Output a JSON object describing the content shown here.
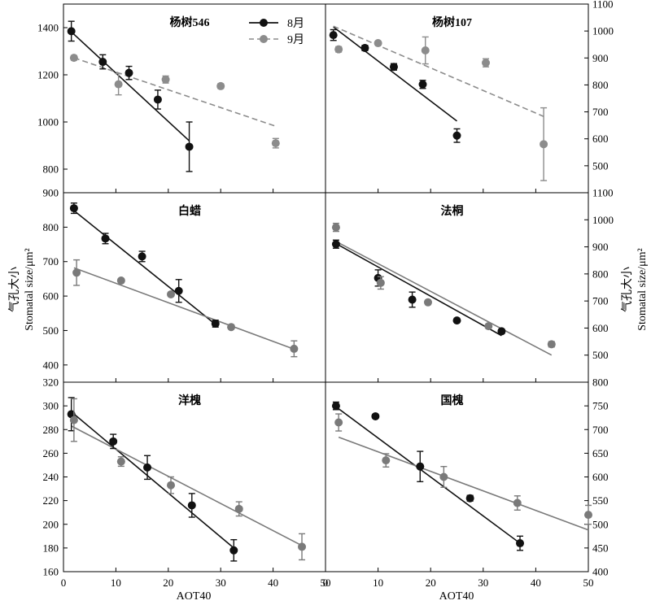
{
  "figure": {
    "xlabel": "AOT40",
    "ylabel_cn": "气孔大小",
    "ylabel_en": "Stomatal size/μm²",
    "legend": [
      {
        "label": "8月",
        "color": "#111111",
        "dashed": false
      },
      {
        "label": "9月",
        "color": "#8c8c8c",
        "dashed": true
      }
    ]
  },
  "chart_data": [
    {
      "type": "scatter",
      "title": "杨树546",
      "xlim": [
        0,
        50
      ],
      "ylim": [
        700,
        1500
      ],
      "yticks": [
        800,
        1000,
        1200,
        1400
      ],
      "xticks": [
        0,
        10,
        20,
        30,
        40
      ],
      "yaxis": "left",
      "series": [
        {
          "name": "8月",
          "color": "#111111",
          "points": [
            [
              1.5,
              1385,
              42
            ],
            [
              7.5,
              1255,
              30
            ],
            [
              12.5,
              1208,
              28
            ],
            [
              18,
              1095,
              40
            ],
            [
              24,
              895,
              105
            ]
          ],
          "fit": [
            [
              1.5,
              1382
            ],
            [
              24,
              920
            ]
          ],
          "dash": false
        },
        {
          "name": "9月",
          "color": "#8c8c8c",
          "points": [
            [
              2,
              1272,
              10
            ],
            [
              10.5,
              1160,
              45
            ],
            [
              19.5,
              1180,
              15
            ],
            [
              30,
              1152,
              10
            ],
            [
              40.5,
              910,
              20
            ]
          ],
          "fit": [
            [
              2,
              1272
            ],
            [
              40.5,
              982
            ]
          ],
          "dash": true
        }
      ]
    },
    {
      "type": "scatter",
      "title": "杨树107",
      "xlim": [
        0,
        50
      ],
      "ylim": [
        400,
        1100
      ],
      "yticks": [
        500,
        600,
        700,
        800,
        900,
        1000,
        1100
      ],
      "xticks": [
        0,
        10,
        20,
        30,
        40,
        50
      ],
      "yaxis": "right",
      "series": [
        {
          "name": "8月",
          "color": "#111111",
          "points": [
            [
              1.5,
              985,
              20
            ],
            [
              7.5,
              937,
              10
            ],
            [
              13,
              867,
              12
            ],
            [
              18.5,
              802,
              15
            ],
            [
              25,
              612,
              25
            ]
          ],
          "fit": [
            [
              1.5,
              1015
            ],
            [
              25,
              666
            ]
          ],
          "dash": false
        },
        {
          "name": "9月",
          "color": "#8c8c8c",
          "points": [
            [
              2.5,
              932,
              10
            ],
            [
              10,
              955,
              5
            ],
            [
              19,
              928,
              50
            ],
            [
              30.5,
              882,
              15
            ],
            [
              41.5,
              580,
              135
            ]
          ],
          "fit": [
            [
              1.5,
              1018
            ],
            [
              41.5,
              683
            ]
          ],
          "dash": true
        }
      ]
    },
    {
      "type": "scatter",
      "title": "白蜡",
      "xlim": [
        0,
        50
      ],
      "ylim": [
        350,
        900
      ],
      "yticks": [
        400,
        500,
        600,
        700,
        800,
        900
      ],
      "xticks": [
        0,
        10,
        20,
        30,
        40
      ],
      "yaxis": "left",
      "series": [
        {
          "name": "8月",
          "color": "#111111",
          "points": [
            [
              2,
              855,
              15
            ],
            [
              8,
              767,
              15
            ],
            [
              15,
              715,
              15
            ],
            [
              22,
              615,
              33
            ],
            [
              29,
              520,
              10
            ]
          ],
          "fit": [
            [
              2,
              848
            ],
            [
              29,
              518
            ]
          ],
          "dash": false
        },
        {
          "name": "9月",
          "color": "#7a7a7a",
          "points": [
            [
              2.5,
              668,
              37
            ],
            [
              11,
              645,
              5
            ],
            [
              20.5,
              605,
              5
            ],
            [
              32,
              510,
              5
            ],
            [
              44,
              447,
              23
            ]
          ],
          "fit": [
            [
              2,
              682
            ],
            [
              44,
              446
            ]
          ],
          "dash": false
        }
      ]
    },
    {
      "type": "scatter",
      "title": "法桐",
      "xlim": [
        0,
        50
      ],
      "ylim": [
        400,
        1100
      ],
      "yticks": [
        500,
        600,
        700,
        800,
        900,
        1000,
        1100
      ],
      "xticks": [
        0,
        10,
        20,
        30,
        40,
        50
      ],
      "yaxis": "right",
      "series": [
        {
          "name": "8月",
          "color": "#111111",
          "points": [
            [
              2,
              910,
              15
            ],
            [
              10,
              785,
              30
            ],
            [
              16.5,
              705,
              28
            ],
            [
              25,
              628,
              5
            ],
            [
              33.5,
              588,
              8
            ]
          ],
          "fit": [
            [
              2,
              912
            ],
            [
              33.5,
              572
            ]
          ],
          "dash": false
        },
        {
          "name": "9月",
          "color": "#7a7a7a",
          "points": [
            [
              2,
              972,
              15
            ],
            [
              10.5,
              767,
              23
            ],
            [
              19.5,
              695,
              8
            ],
            [
              31,
              607,
              5
            ],
            [
              43,
              540,
              10
            ]
          ],
          "fit": [
            [
              2,
              920
            ],
            [
              43,
              500
            ]
          ],
          "dash": false
        }
      ]
    },
    {
      "type": "scatter",
      "title": "洋槐",
      "xlim": [
        0,
        50
      ],
      "ylim": [
        160,
        320
      ],
      "yticks": [
        160,
        180,
        200,
        220,
        240,
        260,
        280,
        300,
        320
      ],
      "xticks": [
        0,
        10,
        20,
        30,
        40,
        50
      ],
      "yaxis": "left",
      "series": [
        {
          "name": "8月",
          "color": "#111111",
          "points": [
            [
              1.5,
              293,
              14
            ],
            [
              9.5,
              270,
              6
            ],
            [
              16,
              248,
              10
            ],
            [
              24.5,
              216,
              10
            ],
            [
              32.5,
              178,
              9
            ]
          ],
          "fit": [
            [
              1.5,
              295
            ],
            [
              32.5,
              180
            ]
          ],
          "dash": false
        },
        {
          "name": "9月",
          "color": "#7a7a7a",
          "points": [
            [
              2,
              288,
              18
            ],
            [
              11,
              253,
              4
            ],
            [
              20.5,
              233,
              7
            ],
            [
              33.5,
              213,
              6
            ],
            [
              45.5,
              181,
              11
            ]
          ],
          "fit": [
            [
              1.5,
              283
            ],
            [
              45.5,
              182
            ]
          ],
          "dash": false
        }
      ]
    },
    {
      "type": "scatter",
      "title": "国槐",
      "xlim": [
        0,
        50
      ],
      "ylim": [
        400,
        800
      ],
      "yticks": [
        400,
        450,
        500,
        550,
        600,
        650,
        700,
        750,
        800
      ],
      "xticks": [
        0,
        10,
        20,
        30,
        40,
        50
      ],
      "yaxis": "right",
      "series": [
        {
          "name": "8月",
          "color": "#111111",
          "points": [
            [
              2,
              750,
              8
            ],
            [
              9.5,
              728,
              4
            ],
            [
              18,
              622,
              32
            ],
            [
              27.5,
              555,
              6
            ],
            [
              37,
              460,
              15
            ]
          ],
          "fit": [
            [
              2,
              748
            ],
            [
              37,
              460
            ]
          ],
          "dash": false
        },
        {
          "name": "9月",
          "color": "#7a7a7a",
          "points": [
            [
              2.5,
              715,
              18
            ],
            [
              11.5,
              635,
              14
            ],
            [
              22.5,
              600,
              22
            ],
            [
              36.5,
              545,
              15
            ],
            [
              50,
              520,
              20
            ]
          ],
          "fit": [
            [
              2.5,
              684
            ],
            [
              50,
              488
            ]
          ],
          "dash": false
        }
      ]
    }
  ]
}
